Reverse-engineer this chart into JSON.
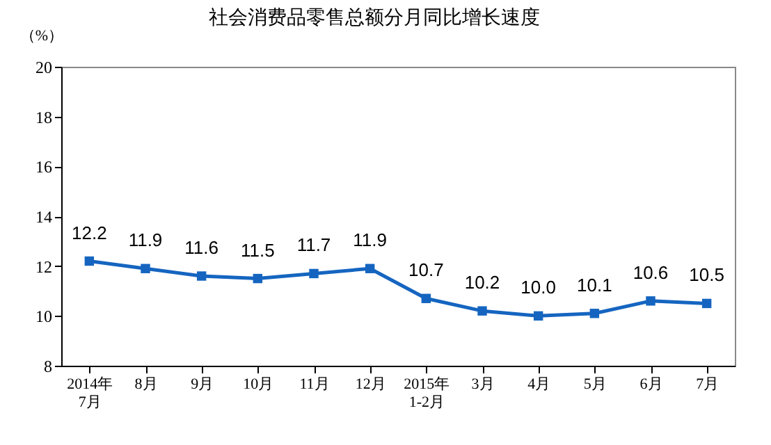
{
  "chart_data": {
    "type": "line",
    "title": "社会消费品零售总额分月同比增长速度",
    "ylabel": "（%）",
    "categories": [
      "2014年\n7月",
      "8月",
      "9月",
      "10月",
      "11月",
      "12月",
      "2015年\n1-2月",
      "3月",
      "4月",
      "5月",
      "6月",
      "7月"
    ],
    "series": [
      {
        "color": "#1565c0",
        "values": [
          12.2,
          11.9,
          11.6,
          11.5,
          11.7,
          11.9,
          10.7,
          10.2,
          10.0,
          10.1,
          10.6,
          10.5
        ],
        "value_labels": [
          "12.2",
          "11.9",
          "11.6",
          "11.5",
          "11.7",
          "11.9",
          "10.7",
          "10.2",
          "10.0",
          "10.1",
          "10.6",
          "10.5"
        ]
      }
    ],
    "ylim": [
      8,
      20
    ],
    "yticks": [
      8,
      10,
      12,
      14,
      16,
      18,
      20
    ],
    "marker": "square",
    "grid": false,
    "legend": false
  }
}
